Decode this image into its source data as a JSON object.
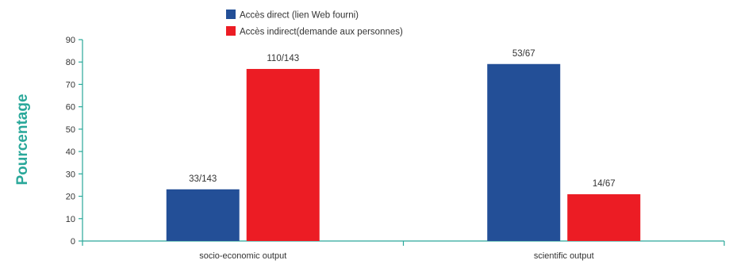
{
  "chart_data": {
    "type": "bar",
    "categories": [
      "socio-economic output",
      "scientific output"
    ],
    "series": [
      {
        "name": "Accès direct (lien Web fourni)",
        "color": "#234f97",
        "values": [
          23.1,
          79.1
        ],
        "labels": [
          "33/143",
          "53/67"
        ]
      },
      {
        "name": "Accès indirect(demande aux personnes)",
        "color": "#ec1c24",
        "values": [
          76.9,
          20.9
        ],
        "labels": [
          "110/143",
          "14/67"
        ]
      }
    ],
    "title": "",
    "xlabel": "",
    "ylabel": "Pourcentage",
    "ylim": [
      0,
      90
    ],
    "yticks": [
      0,
      10,
      20,
      30,
      40,
      50,
      60,
      70,
      80,
      90
    ],
    "grid": false,
    "legend_position": "top-left",
    "axis_color": "#2aa89a",
    "ylabel_color": "#2aa89a"
  }
}
